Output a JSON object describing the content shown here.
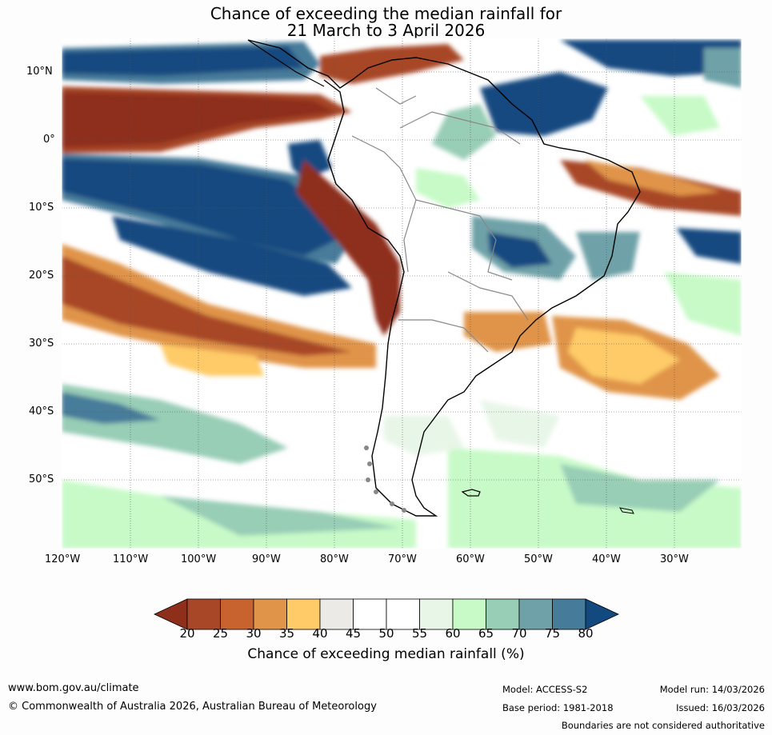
{
  "title": {
    "line1": "Chance of exceeding the median rainfall for",
    "line2": "21 March to 3 April 2026"
  },
  "map": {
    "lat_labels": [
      "10°N",
      "0°",
      "10°S",
      "20°S",
      "30°S",
      "40°S",
      "50°S"
    ],
    "lon_labels": [
      "120°W",
      "110°W",
      "100°W",
      "90°W",
      "80°W",
      "70°W",
      "60°W",
      "50°W",
      "40°W",
      "30°W"
    ],
    "region": "South America and surrounding oceans"
  },
  "colorbar": {
    "ticks": [
      "20",
      "25",
      "30",
      "35",
      "40",
      "45",
      "50",
      "55",
      "60",
      "65",
      "70",
      "75",
      "80"
    ],
    "colors": [
      "#8e2f1c",
      "#a84628",
      "#c8622f",
      "#e0944a",
      "#fecb68",
      "#eceae6",
      "#ffffff",
      "#ffffff",
      "#e8f6e8",
      "#c8fac8",
      "#98cdb6",
      "#6ea2a8",
      "#467c9a",
      "#124a80"
    ],
    "label": "Chance of exceeding median rainfall (%)"
  },
  "footer": {
    "website": "www.bom.gov.au/climate",
    "copyright": "© Commonwealth of Australia 2026, Australian Bureau of Meteorology",
    "model": "Model: ACCESS-S2",
    "base_period": "Base period: 1981-2018",
    "model_run": "Model run: 14/03/2026",
    "issued": "Issued: 16/03/2026",
    "disclaimer": "Boundaries are not considered authoritative"
  }
}
